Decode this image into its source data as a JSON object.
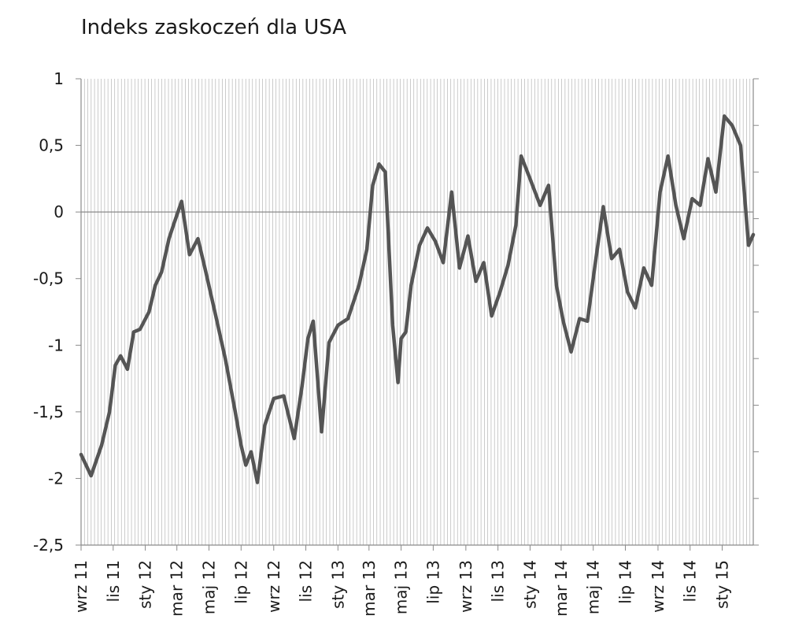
{
  "chart_data": {
    "type": "line",
    "title": "Indeks zaskoczeń dla USA",
    "xlabel": "",
    "ylabel": "",
    "ylim": [
      -2.5,
      1
    ],
    "y_ticks": [
      "1",
      "0,5",
      "0",
      "-0,5",
      "-1",
      "-1,5",
      "-2",
      "-2,5"
    ],
    "x_tick_labels": [
      "wrz 11",
      "lis 11",
      "sty 12",
      "mar 12",
      "maj 12",
      "lip 12",
      "wrz 12",
      "lis 12",
      "sty 13",
      "mar 13",
      "maj 13",
      "lip 13",
      "wrz 13",
      "lis 13",
      "sty 14",
      "mar 14",
      "maj 14",
      "lip 14",
      "wrz 14",
      "lis 14",
      "sty 15"
    ],
    "x_start": "2011-09",
    "x_end": "2015-03",
    "grid": "vertical",
    "line_color": "#555555",
    "series": [
      {
        "x": [
          "2011-09-01",
          "2011-09-20",
          "2011-10-10",
          "2011-10-25",
          "2011-11-05",
          "2011-11-15",
          "2011-11-28",
          "2011-12-10",
          "2011-12-22",
          "2012-01-08",
          "2012-01-20",
          "2012-02-01",
          "2012-02-15",
          "2012-02-25",
          "2012-03-10",
          "2012-03-25",
          "2012-04-10",
          "2012-04-25",
          "2012-05-15",
          "2012-06-01",
          "2012-06-20",
          "2012-07-01",
          "2012-07-10",
          "2012-07-20",
          "2012-08-01",
          "2012-08-15",
          "2012-09-01",
          "2012-09-20",
          "2012-10-10",
          "2012-10-25",
          "2012-11-05",
          "2012-11-15",
          "2012-12-01",
          "2012-12-15",
          "2013-01-01",
          "2013-01-20",
          "2013-02-10",
          "2013-02-25",
          "2013-03-08",
          "2013-03-20",
          "2013-04-01",
          "2013-04-15",
          "2013-04-25",
          "2013-05-01",
          "2013-05-10",
          "2013-05-20",
          "2013-06-05",
          "2013-06-20",
          "2013-07-05",
          "2013-07-20",
          "2013-08-05",
          "2013-08-20",
          "2013-09-05",
          "2013-09-20",
          "2013-10-05",
          "2013-10-20",
          "2013-11-05",
          "2013-11-20",
          "2013-12-05",
          "2013-12-15",
          "2014-01-01",
          "2014-01-20",
          "2014-02-05",
          "2014-02-20",
          "2014-03-05",
          "2014-03-20",
          "2014-04-05",
          "2014-04-20",
          "2014-05-05",
          "2014-05-20",
          "2014-06-05",
          "2014-06-20",
          "2014-07-05",
          "2014-07-20",
          "2014-08-05",
          "2014-08-20",
          "2014-09-05",
          "2014-09-20",
          "2014-10-05",
          "2014-10-20",
          "2014-11-05",
          "2014-11-20",
          "2014-12-05",
          "2014-12-20",
          "2015-01-05",
          "2015-01-20",
          "2015-02-05",
          "2015-02-20",
          "2015-03-01"
        ],
        "values": [
          -1.82,
          -1.98,
          -1.75,
          -1.5,
          -1.15,
          -1.08,
          -1.18,
          -0.9,
          -0.88,
          -0.75,
          -0.55,
          -0.45,
          -0.2,
          -0.08,
          0.08,
          -0.32,
          -0.2,
          -0.45,
          -0.8,
          -1.1,
          -1.5,
          -1.75,
          -1.9,
          -1.8,
          -2.03,
          -1.6,
          -1.4,
          -1.38,
          -1.7,
          -1.3,
          -0.95,
          -0.82,
          -1.65,
          -0.98,
          -0.85,
          -0.8,
          -0.55,
          -0.28,
          0.2,
          0.36,
          0.3,
          -0.85,
          -1.28,
          -0.95,
          -0.9,
          -0.55,
          -0.25,
          -0.12,
          -0.22,
          -0.38,
          0.15,
          -0.42,
          -0.18,
          -0.52,
          -0.38,
          -0.78,
          -0.6,
          -0.4,
          -0.1,
          0.42,
          0.25,
          0.05,
          0.2,
          -0.55,
          -0.82,
          -1.05,
          -0.8,
          -0.82,
          -0.38,
          0.04,
          -0.35,
          -0.28,
          -0.6,
          -0.72,
          -0.42,
          -0.55,
          0.15,
          0.42,
          0.05,
          -0.2,
          0.1,
          0.05,
          0.4,
          0.15,
          0.72,
          0.65,
          0.5,
          -0.25,
          -0.17
        ]
      }
    ]
  }
}
